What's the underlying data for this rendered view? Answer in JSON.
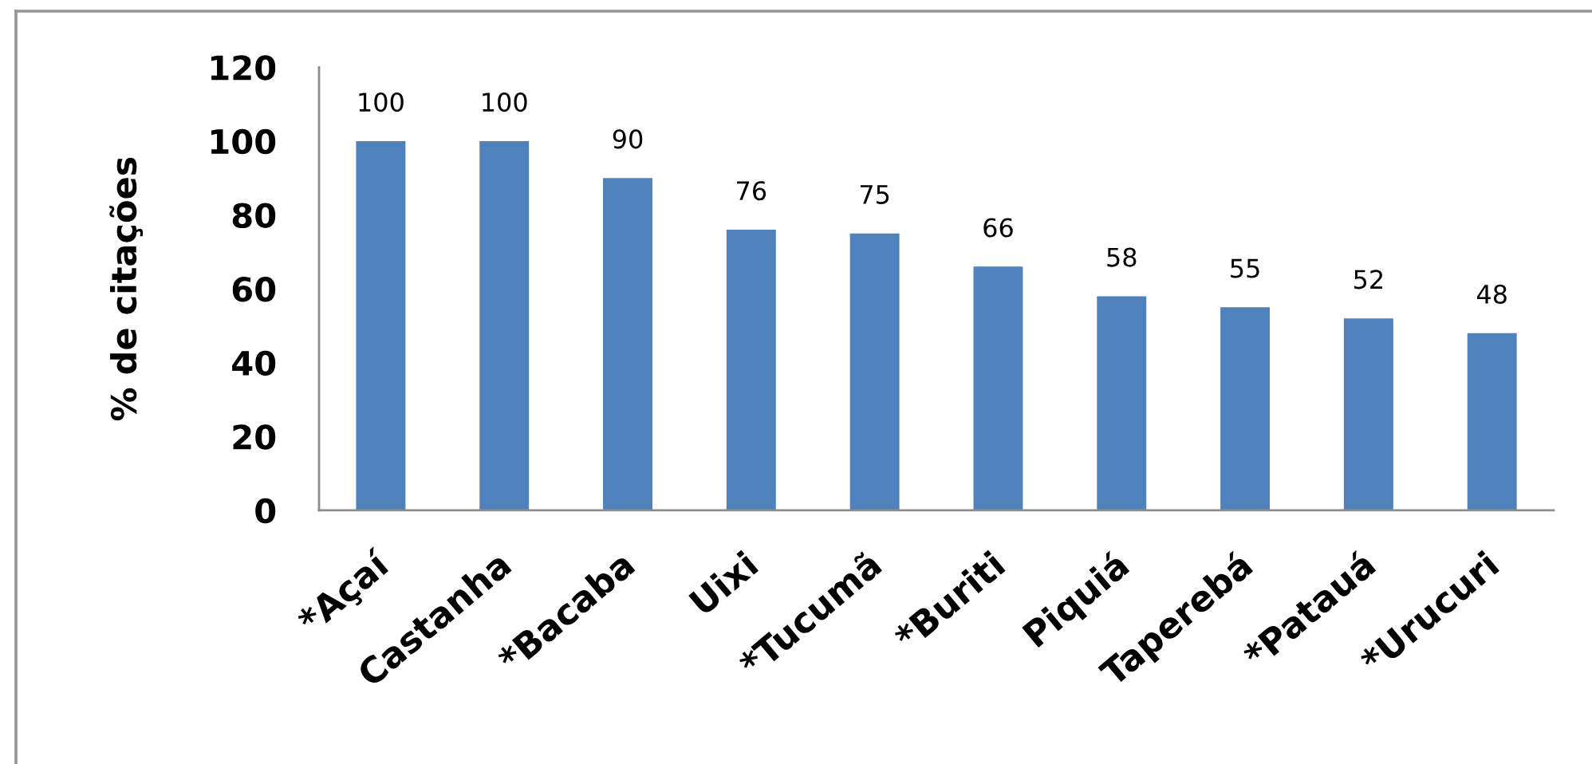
{
  "chart_data": {
    "type": "bar",
    "ylabel": "% de citações",
    "categories": [
      "*Açaí",
      "Castanha",
      "*Bacaba",
      "Uixi",
      "*Tucumã",
      "*Buriti",
      "Piquiá",
      "Taperebá",
      "*Patauá",
      "*Urucuri"
    ],
    "values": [
      100,
      100,
      90,
      76,
      75,
      66,
      58,
      55,
      52,
      48
    ],
    "color": "#4f81bd",
    "ylim": [
      0,
      120
    ],
    "yticks": [
      0,
      20,
      40,
      60,
      80,
      100,
      120
    ],
    "data_labels": true
  }
}
